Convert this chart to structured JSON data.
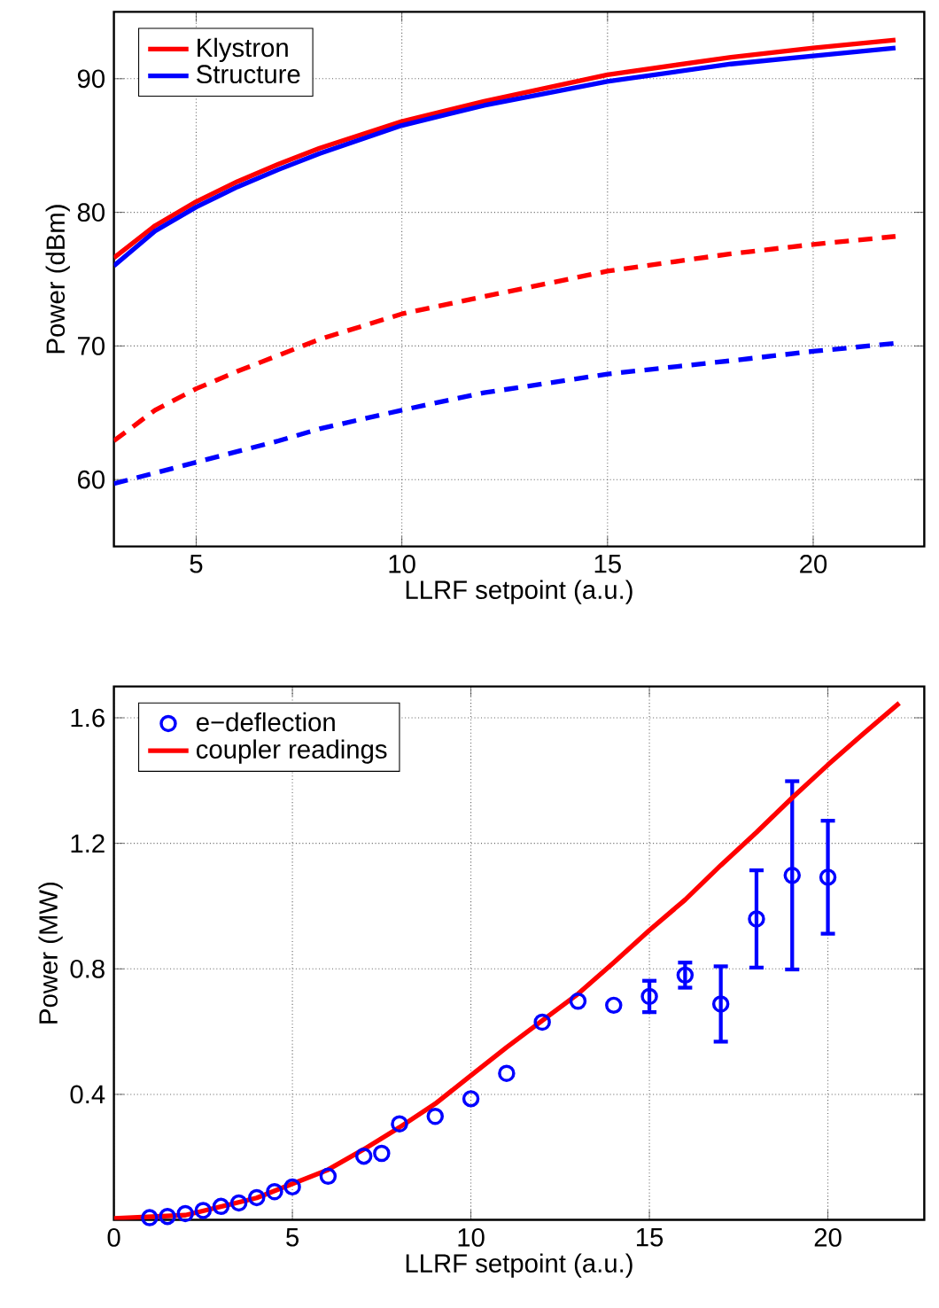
{
  "chart_data": [
    {
      "type": "line",
      "xlabel": "LLRF setpoint (a.u.)",
      "ylabel": "Power (dBm)",
      "xlim": [
        3,
        22.7
      ],
      "ylim": [
        55,
        95
      ],
      "xticks": [
        5,
        10,
        15,
        20
      ],
      "yticks": [
        60,
        70,
        80,
        90
      ],
      "grid": true,
      "legend": "top left",
      "marker": "none",
      "series": [
        {
          "name": "Klystron",
          "color": "#ff0000",
          "line_style": "solid",
          "x": [
            3,
            4,
            5,
            6,
            7,
            8,
            10,
            12,
            15,
            18,
            20,
            22
          ],
          "values": [
            76.6,
            79,
            80.8,
            82.3,
            83.6,
            84.8,
            86.8,
            88.3,
            90.3,
            91.6,
            92.3,
            92.9
          ]
        },
        {
          "name": "Structure",
          "color": "#0000ff",
          "line_style": "solid",
          "x": [
            3,
            4,
            5,
            6,
            7,
            8,
            10,
            12,
            15,
            18,
            20,
            22
          ],
          "values": [
            76.0,
            78.6,
            80.4,
            81.9,
            83.2,
            84.4,
            86.5,
            88.0,
            89.8,
            91.1,
            91.7,
            92.3
          ]
        },
        {
          "color": "#ff0000",
          "line_style": "dashed",
          "x": [
            3,
            4,
            5,
            6,
            7,
            8,
            10,
            12,
            15,
            18,
            20,
            22
          ],
          "values": [
            62.9,
            65.2,
            66.8,
            68.1,
            69.3,
            70.5,
            72.4,
            73.7,
            75.6,
            76.9,
            77.6,
            78.2
          ]
        },
        {
          "color": "#0000ff",
          "line_style": "dashed",
          "x": [
            3,
            5,
            7,
            8,
            10,
            12,
            15,
            18,
            20,
            22
          ],
          "values": [
            59.7,
            61.3,
            62.9,
            63.8,
            65.2,
            66.5,
            67.9,
            68.9,
            69.6,
            70.2
          ]
        }
      ]
    },
    {
      "type": "scatter",
      "xlabel": "LLRF setpoint (a.u.)",
      "ylabel": "Power (MW)",
      "xlim": [
        0,
        22.7
      ],
      "ylim": [
        0,
        1.7
      ],
      "xticks": [
        0,
        5,
        10,
        15,
        20
      ],
      "yticks": [
        0.4,
        0.8,
        1.2,
        1.6
      ],
      "grid": true,
      "legend": "top left",
      "series": [
        {
          "name": "e−deflection",
          "type": "scatter",
          "marker": "circle",
          "color": "#0000ff",
          "x": [
            1,
            1.5,
            2,
            2.5,
            3,
            3.5,
            4,
            4.5,
            5,
            6,
            7,
            7.5,
            8,
            9,
            10,
            11,
            12,
            13,
            14,
            15,
            16,
            17,
            18,
            19,
            20
          ],
          "values": [
            0.007,
            0.011,
            0.02,
            0.03,
            0.043,
            0.054,
            0.071,
            0.09,
            0.105,
            0.139,
            0.203,
            0.212,
            0.306,
            0.33,
            0.386,
            0.467,
            0.63,
            0.697,
            0.684,
            0.712,
            0.78,
            0.688,
            0.959,
            1.098,
            1.092
          ],
          "errors": [
            null,
            null,
            null,
            null,
            null,
            null,
            null,
            null,
            null,
            null,
            null,
            null,
            null,
            null,
            null,
            null,
            null,
            null,
            null,
            0.05,
            0.04,
            0.12,
            0.155,
            0.3,
            0.18
          ]
        },
        {
          "name": "coupler readings",
          "type": "line",
          "marker": "none",
          "line_style": "solid",
          "color": "#ff0000",
          "x": [
            0,
            2,
            4,
            5,
            6,
            7,
            8,
            9,
            10,
            11,
            12,
            13,
            14,
            15,
            16,
            17,
            18,
            19,
            20,
            21,
            22
          ],
          "values": [
            0.005,
            0.015,
            0.07,
            0.115,
            0.16,
            0.225,
            0.295,
            0.37,
            0.46,
            0.55,
            0.635,
            0.72,
            0.82,
            0.923,
            1.02,
            1.13,
            1.235,
            1.345,
            1.45,
            1.55,
            1.647
          ]
        }
      ]
    }
  ]
}
